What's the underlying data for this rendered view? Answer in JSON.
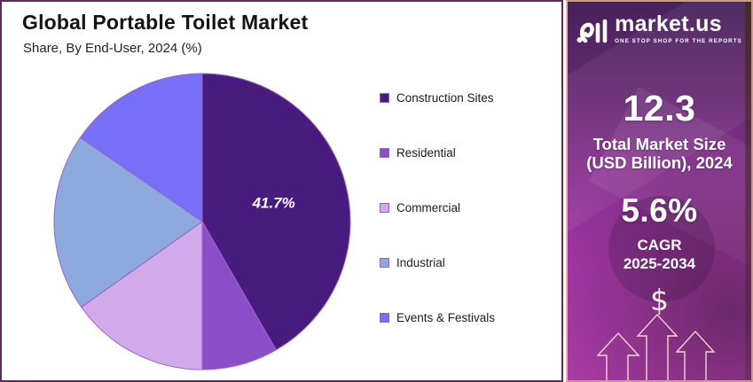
{
  "chart_panel": {
    "title": "Global Portable Toilet Market",
    "subtitle": "Share, By End-User, 2024 (%)",
    "border_color": "#5d2b5d"
  },
  "chart_data": {
    "type": "pie",
    "title": "Global Portable Toilet Market",
    "subtitle": "Share, By End-User, 2024 (%)",
    "unit": "%",
    "legend_position": "right",
    "start_angle_deg": 0,
    "direction": "clockwise",
    "slice_stroke_color": "#9c64c3",
    "slices": [
      {
        "label": "Construction Sites",
        "value": 41.7,
        "color": "#481c7e",
        "data_label": "41.7%"
      },
      {
        "label": "Residential",
        "value": 8.3,
        "color": "#8b4ec9",
        "data_label": ""
      },
      {
        "label": "Commercial",
        "value": 15.2,
        "color": "#d2a9ea",
        "data_label": ""
      },
      {
        "label": "Industrial",
        "value": 19.4,
        "color": "#8ea9dd",
        "data_label": ""
      },
      {
        "label": "Events & Festivals",
        "value": 15.4,
        "color": "#766ff7",
        "data_label": ""
      }
    ]
  },
  "sidebar": {
    "brand": {
      "name": "market.us",
      "tagline": "ONE STOP SHOP FOR THE REPORTS"
    },
    "market_size": {
      "value": "12.3",
      "label_line1": "Total Market Size",
      "label_line2": "(USD Billion), 2024"
    },
    "cagr": {
      "value": "5.6%",
      "label_line1": "CAGR",
      "label_line2": "2025-2034"
    },
    "dollar_symbol": "$",
    "colors": {
      "gradient_top": "#46225a",
      "gradient_bottom": "#ad3caa",
      "border": "#eab79a"
    }
  }
}
